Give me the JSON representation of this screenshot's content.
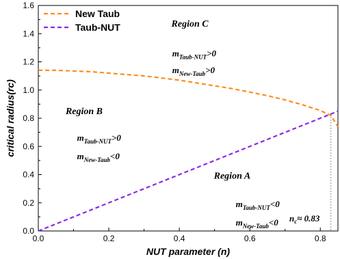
{
  "chart_data": {
    "type": "line",
    "xlabel": "NUT parameter (n)",
    "ylabel": "critical radius(rc)",
    "xlim": [
      0,
      0.85
    ],
    "ylim": [
      0,
      1.6
    ],
    "x_ticks": [
      "0.0",
      "0.2",
      "0.4",
      "0.6",
      "0.8"
    ],
    "x_tick_values": [
      0,
      0.2,
      0.4,
      0.6,
      0.8
    ],
    "y_ticks": [
      "0.0",
      "0.2",
      "0.4",
      "0.6",
      "0.8",
      "1.0",
      "1.2",
      "1.4",
      "1.6"
    ],
    "y_tick_values": [
      0,
      0.2,
      0.4,
      0.6,
      0.8,
      1.0,
      1.2,
      1.4,
      1.6
    ],
    "grid": false,
    "legend_position": "top-left",
    "series": [
      {
        "name": "New Taub",
        "color": "#ff8c1a",
        "dash": "dashed",
        "x": [
          0.0,
          0.05,
          0.1,
          0.15,
          0.2,
          0.25,
          0.3,
          0.35,
          0.4,
          0.45,
          0.5,
          0.55,
          0.6,
          0.65,
          0.7,
          0.75,
          0.8,
          0.83,
          0.85
        ],
        "y": [
          1.14,
          1.14,
          1.135,
          1.13,
          1.12,
          1.11,
          1.1,
          1.085,
          1.07,
          1.05,
          1.03,
          1.01,
          0.985,
          0.96,
          0.93,
          0.895,
          0.855,
          0.82,
          0.74
        ]
      },
      {
        "name": "Taub-NUT",
        "color": "#8a2be2",
        "dash": "dashed",
        "x": [
          0.0,
          0.85
        ],
        "y": [
          0.0,
          0.85
        ]
      }
    ],
    "regions": [
      {
        "title": "Region C",
        "x": 0.43,
        "y": 1.45,
        "lines": [
          {
            "m": "m",
            "sub": "Taub-NUT",
            "rel": ">0"
          },
          {
            "m": "m",
            "sub": "New-Taub",
            "rel": ">0"
          }
        ],
        "lines_x": 0.38,
        "lines_y": [
          1.24,
          1.12
        ]
      },
      {
        "title": "Region B",
        "x": 0.13,
        "y": 0.83,
        "lines": [
          {
            "m": "m",
            "sub": "Taub-NUT",
            "rel": ">0"
          },
          {
            "m": "m",
            "sub": "New-Taub",
            "rel": "<0"
          }
        ],
        "lines_x": 0.11,
        "lines_y": [
          0.64,
          0.51
        ]
      },
      {
        "title": "Region A",
        "x": 0.55,
        "y": 0.37,
        "lines": [
          {
            "m": "m",
            "sub": "Taub-NUT",
            "rel": "<0"
          },
          {
            "m": "m",
            "sub": "New-Taub",
            "rel": "<0"
          }
        ],
        "lines_x": 0.56,
        "lines_y": [
          0.17,
          0.04
        ]
      }
    ],
    "annotation": {
      "text": "nₓ≈ 0.83",
      "label_main": "n",
      "label_sub": "c",
      "label_rest": "≈ 0.83",
      "x": 0.83,
      "y": 0.83
    }
  }
}
